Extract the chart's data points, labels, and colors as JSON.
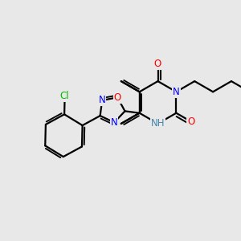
{
  "bg_color": "#e8e8e8",
  "bond_color": "#000000",
  "bond_width": 1.6,
  "dbo": 0.12,
  "atom_colors": {
    "N": "#0000ff",
    "O": "#ff0000",
    "Cl": "#00bb00",
    "NH": "#4488aa"
  },
  "font_size": 8.5
}
